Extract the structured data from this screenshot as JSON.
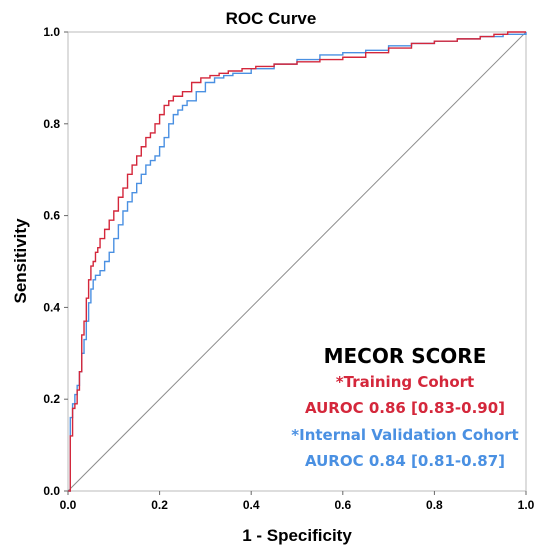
{
  "chart_data": {
    "type": "line",
    "title": "ROC Curve",
    "xlabel": "1 - Specificity",
    "ylabel": "Sensitivity",
    "xlim": [
      0,
      1
    ],
    "ylim": [
      0,
      1
    ],
    "xticks": [
      "0.0",
      "0.2",
      "0.4",
      "0.6",
      "0.8",
      "1.0"
    ],
    "yticks": [
      "0.0",
      "0.2",
      "0.4",
      "0.6",
      "0.8",
      "1.0"
    ],
    "grid": false,
    "colors": {
      "training": "#d4273b",
      "validation": "#4a90e2",
      "diagonal": "#8c8c8c",
      "frame": "#bbbbbb"
    },
    "annotation": {
      "title": "MECOR SCORE",
      "training_label": "*Training Cohort",
      "training_auroc": "AUROC 0.86 [0.83-0.90]",
      "validation_label": "*Internal Validation Cohort",
      "validation_auroc": "AUROC 0.84 [0.81-0.87]"
    },
    "series": [
      {
        "name": "*Training Cohort",
        "color": "#d4273b",
        "x": [
          0,
          0.005,
          0.005,
          0.01,
          0.01,
          0.015,
          0.02,
          0.025,
          0.03,
          0.03,
          0.035,
          0.04,
          0.045,
          0.05,
          0.055,
          0.06,
          0.065,
          0.07,
          0.08,
          0.09,
          0.1,
          0.11,
          0.12,
          0.13,
          0.14,
          0.15,
          0.16,
          0.17,
          0.18,
          0.19,
          0.2,
          0.21,
          0.22,
          0.23,
          0.25,
          0.27,
          0.29,
          0.31,
          0.33,
          0.35,
          0.38,
          0.41,
          0.45,
          0.5,
          0.55,
          0.6,
          0.65,
          0.7,
          0.75,
          0.8,
          0.85,
          0.9,
          0.93,
          0.96,
          1.0
        ],
        "y": [
          0,
          0.06,
          0.12,
          0.17,
          0.18,
          0.19,
          0.22,
          0.26,
          0.3,
          0.34,
          0.37,
          0.42,
          0.46,
          0.49,
          0.5,
          0.52,
          0.53,
          0.55,
          0.57,
          0.59,
          0.61,
          0.64,
          0.66,
          0.69,
          0.71,
          0.73,
          0.75,
          0.77,
          0.78,
          0.8,
          0.82,
          0.84,
          0.85,
          0.86,
          0.87,
          0.89,
          0.9,
          0.905,
          0.91,
          0.915,
          0.92,
          0.925,
          0.93,
          0.935,
          0.94,
          0.945,
          0.955,
          0.965,
          0.975,
          0.98,
          0.985,
          0.99,
          0.995,
          1.0,
          1.0
        ]
      },
      {
        "name": "*Internal Validation Cohort",
        "color": "#4a90e2",
        "x": [
          0,
          0.005,
          0.005,
          0.01,
          0.015,
          0.02,
          0.025,
          0.03,
          0.035,
          0.04,
          0.045,
          0.05,
          0.055,
          0.06,
          0.07,
          0.08,
          0.09,
          0.1,
          0.11,
          0.12,
          0.13,
          0.14,
          0.15,
          0.16,
          0.17,
          0.18,
          0.19,
          0.2,
          0.21,
          0.22,
          0.23,
          0.24,
          0.25,
          0.26,
          0.28,
          0.3,
          0.32,
          0.34,
          0.36,
          0.4,
          0.45,
          0.5,
          0.55,
          0.6,
          0.65,
          0.7,
          0.75,
          0.8,
          0.85,
          0.9,
          0.95,
          1.0
        ],
        "y": [
          0,
          0.1,
          0.16,
          0.19,
          0.21,
          0.23,
          0.26,
          0.3,
          0.33,
          0.37,
          0.41,
          0.44,
          0.46,
          0.47,
          0.48,
          0.5,
          0.52,
          0.55,
          0.58,
          0.61,
          0.63,
          0.65,
          0.67,
          0.69,
          0.71,
          0.72,
          0.73,
          0.75,
          0.77,
          0.8,
          0.82,
          0.83,
          0.84,
          0.85,
          0.87,
          0.89,
          0.9,
          0.905,
          0.91,
          0.92,
          0.93,
          0.94,
          0.95,
          0.955,
          0.96,
          0.97,
          0.975,
          0.98,
          0.985,
          0.99,
          0.995,
          1.0
        ]
      }
    ]
  }
}
